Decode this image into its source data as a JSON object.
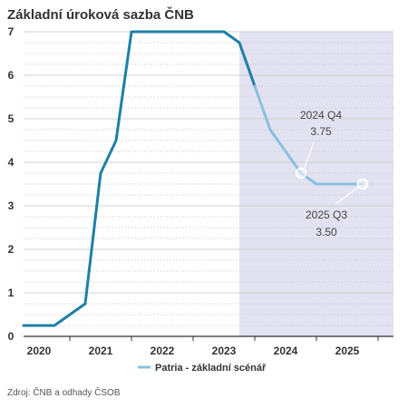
{
  "chart_data": {
    "type": "line",
    "title": "Základní úroková sazba ČNB",
    "ylim": [
      0,
      7
    ],
    "yticks": [
      "0",
      "1",
      "2",
      "3",
      "4",
      "5",
      "6",
      "7"
    ],
    "xlim": [
      2019.75,
      2025.75
    ],
    "xtick_labels": [
      {
        "label": "2020",
        "x": 2020.0
      },
      {
        "label": "2021",
        "x": 2021.0
      },
      {
        "label": "2022",
        "x": 2022.0
      },
      {
        "label": "2023",
        "x": 2023.0
      },
      {
        "label": "2024",
        "x": 2024.0
      },
      {
        "label": "2025",
        "x": 2025.0
      }
    ],
    "forecast_region_start": 2023.25,
    "series": [
      {
        "name": "",
        "color": "#1f7fa6",
        "points": [
          [
            2019.75,
            0.25
          ],
          [
            2020.25,
            0.25
          ],
          [
            2020.75,
            0.75
          ],
          [
            2021.0,
            3.75
          ],
          [
            2021.25,
            4.5
          ],
          [
            2021.5,
            7.0
          ],
          [
            2022.0,
            7.0
          ],
          [
            2022.5,
            7.0
          ],
          [
            2023.0,
            7.0
          ],
          [
            2023.25,
            6.75
          ],
          [
            2023.5,
            5.75
          ]
        ]
      },
      {
        "name": "Patria - základní scénář",
        "color": "#8ac0df",
        "points": [
          [
            2023.5,
            5.75
          ],
          [
            2023.75,
            4.75
          ],
          [
            2024.0,
            4.25
          ],
          [
            2024.25,
            3.75
          ],
          [
            2024.5,
            3.5
          ],
          [
            2024.75,
            3.5
          ],
          [
            2025.0,
            3.5
          ],
          [
            2025.25,
            3.5
          ]
        ]
      }
    ],
    "annotations": [
      {
        "line1": "2024 Q4",
        "line2": "3.75",
        "x": 2024.25,
        "y": 3.75
      },
      {
        "line1": "2025 Q3",
        "line2": "3.50",
        "x": 2025.25,
        "y": 3.5
      }
    ],
    "legend": {
      "label": "Patria - základní scénář",
      "color": "#8ac0df"
    },
    "colors": {
      "forecast_shade": "#e2e2f1",
      "grid": "#c8c8c8",
      "axis": "#333333"
    },
    "source": "Zdroj: ČNB a odhady ČSOB"
  }
}
